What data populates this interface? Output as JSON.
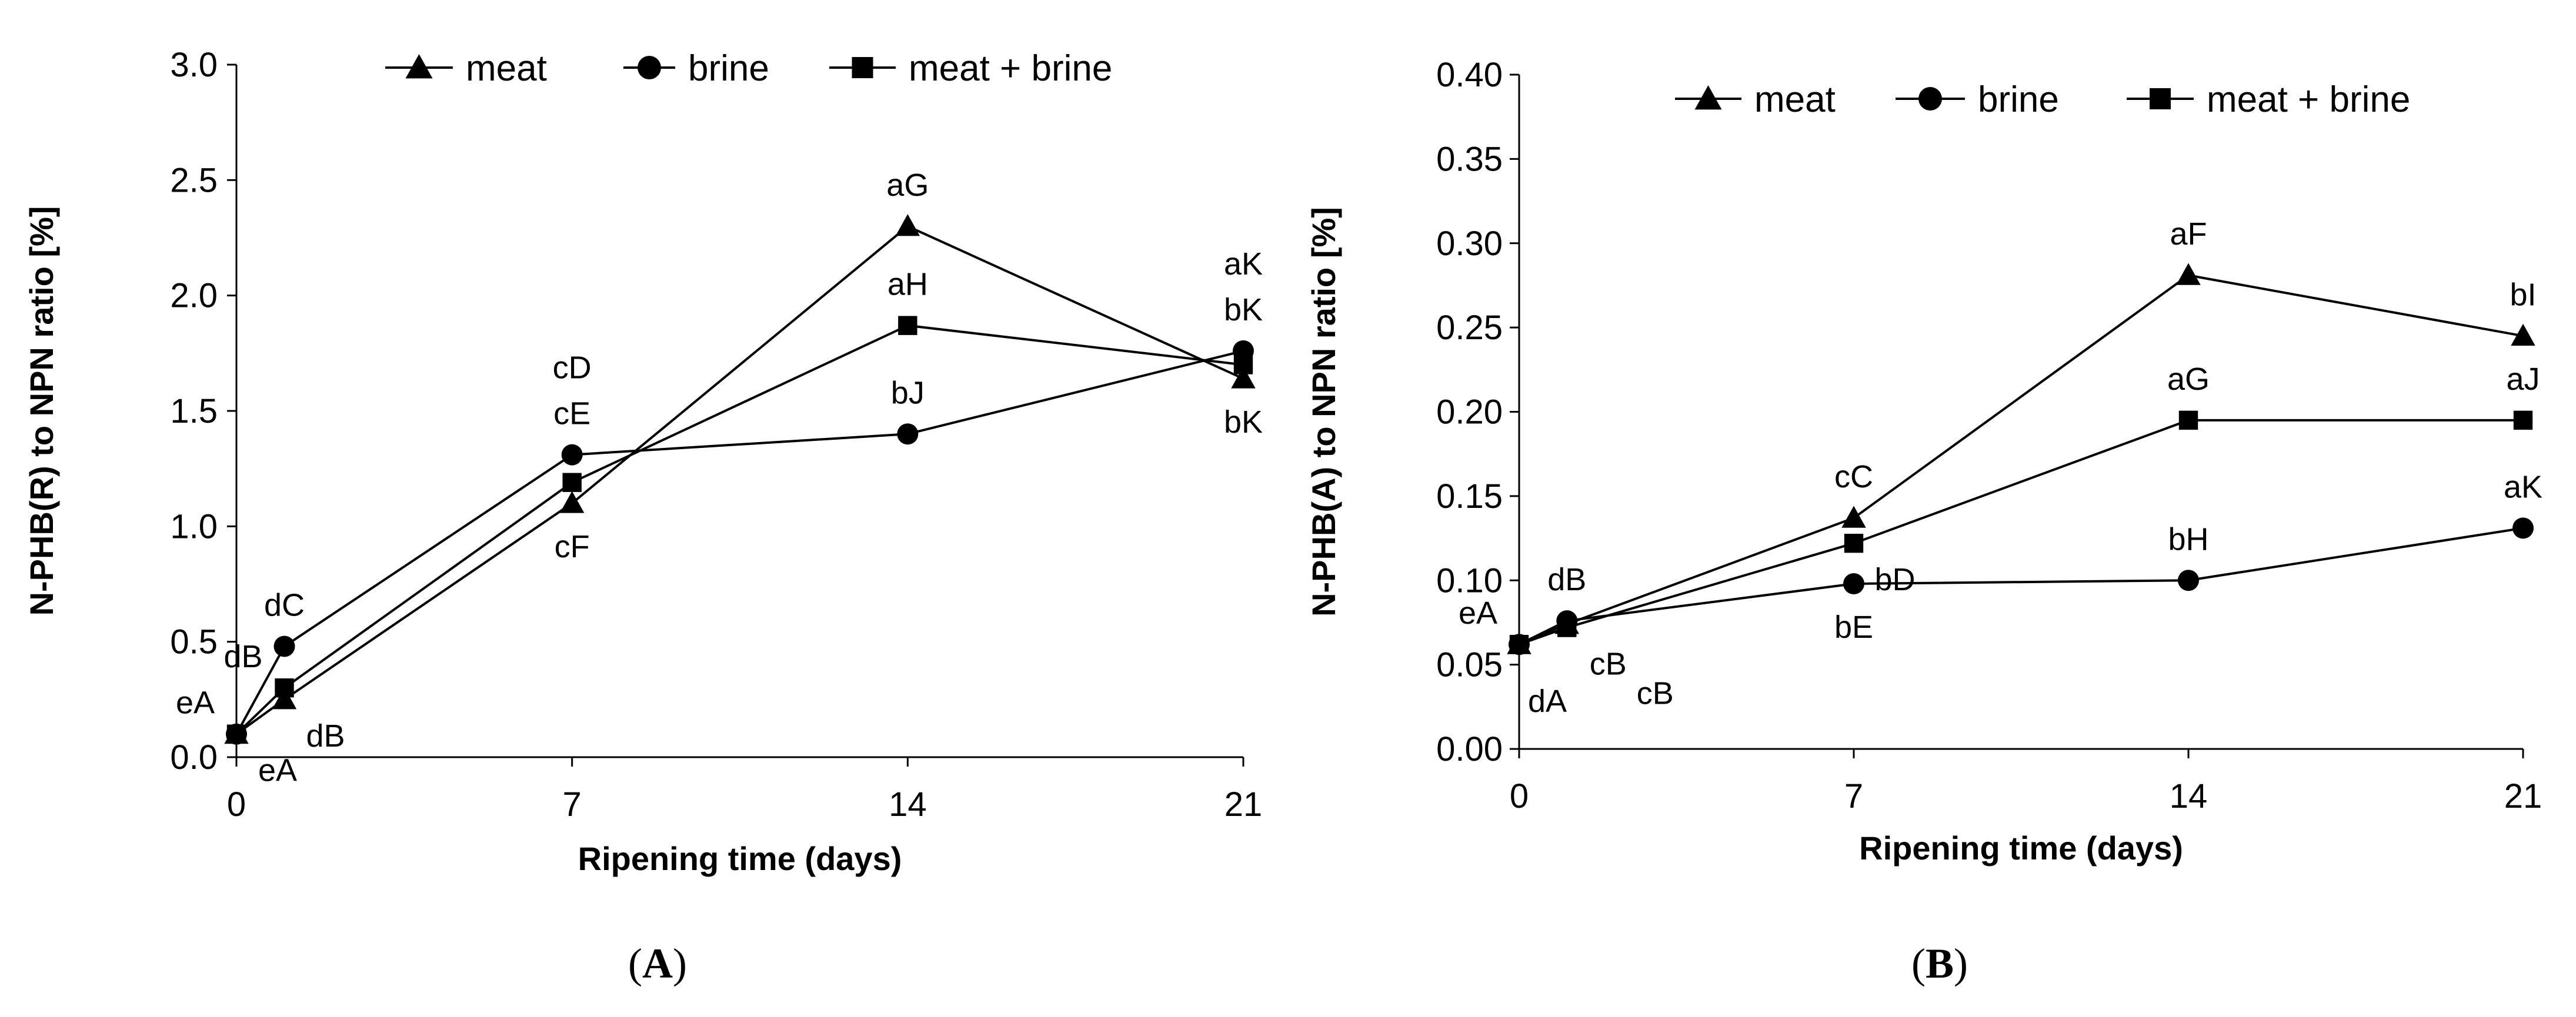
{
  "chart_data": [
    {
      "type": "line",
      "panel_label": "A",
      "title": "",
      "xlabel": "Ripening time (days)",
      "ylabel": "N-PHB(R) to NPN ratio [%]",
      "xlim": [
        0,
        21
      ],
      "ylim": [
        0,
        3.0
      ],
      "xticks": [
        0,
        7,
        14,
        21
      ],
      "xtick_labels": [
        "0",
        "7",
        "14",
        "21"
      ],
      "yticks": [
        0,
        0.5,
        1.0,
        1.5,
        2.0,
        2.5,
        3.0
      ],
      "ytick_labels": [
        "0.0",
        "0.5",
        "1.0",
        "1.5",
        "2.0",
        "2.5",
        "3.0"
      ],
      "legend": {
        "placement": "top",
        "entries": [
          "meat",
          "brine",
          "meat + brine"
        ]
      },
      "series": [
        {
          "name": "meat",
          "marker": "triangle",
          "x": [
            0,
            1,
            7,
            14,
            21
          ],
          "values": [
            0.1,
            0.25,
            1.1,
            2.3,
            1.64
          ]
        },
        {
          "name": "brine",
          "marker": "circle",
          "x": [
            0,
            1,
            7,
            14,
            21
          ],
          "values": [
            0.1,
            0.48,
            1.31,
            1.4,
            1.76
          ]
        },
        {
          "name": "meat + brine",
          "marker": "square",
          "x": [
            0,
            1,
            7,
            14,
            21
          ],
          "values": [
            0.1,
            0.3,
            1.19,
            1.87,
            1.7
          ]
        }
      ],
      "annotations": [
        {
          "text": "eA",
          "x": 0,
          "y": 0.1,
          "pos": "upper-left"
        },
        {
          "text": "eA",
          "x": 0,
          "y": 0.1,
          "pos": "lower-right"
        },
        {
          "text": "dC",
          "x": 1,
          "y": 0.48,
          "pos": "above"
        },
        {
          "text": "dB",
          "x": 1,
          "y": 0.3,
          "pos": "upper-left"
        },
        {
          "text": "dB",
          "x": 1,
          "y": 0.25,
          "pos": "lower-right"
        },
        {
          "text": "cD",
          "x": 7,
          "y": 1.31,
          "pos": "above2"
        },
        {
          "text": "cE",
          "x": 7,
          "y": 1.31,
          "pos": "above"
        },
        {
          "text": "cF",
          "x": 7,
          "y": 1.1,
          "pos": "below"
        },
        {
          "text": "aG",
          "x": 14,
          "y": 2.3,
          "pos": "above"
        },
        {
          "text": "aH",
          "x": 14,
          "y": 1.87,
          "pos": "above"
        },
        {
          "text": "bJ",
          "x": 14,
          "y": 1.4,
          "pos": "above"
        },
        {
          "text": "aK",
          "x": 21,
          "y": 1.76,
          "pos": "above2"
        },
        {
          "text": "bK",
          "x": 21,
          "y": 1.76,
          "pos": "above"
        },
        {
          "text": "bK",
          "x": 21,
          "y": 1.64,
          "pos": "below"
        }
      ]
    },
    {
      "type": "line",
      "panel_label": "B",
      "title": "",
      "xlabel": "Ripening time (days)",
      "ylabel": "N-PHB(A) to NPN ratio [%]",
      "xlim": [
        0,
        21
      ],
      "ylim": [
        0,
        0.4
      ],
      "xticks": [
        0,
        7,
        14,
        21
      ],
      "xtick_labels": [
        "0",
        "7",
        "14",
        "21"
      ],
      "yticks": [
        0,
        0.05,
        0.1,
        0.15,
        0.2,
        0.25,
        0.3,
        0.35,
        0.4
      ],
      "ytick_labels": [
        "0.00",
        "0.05",
        "0.10",
        "0.15",
        "0.20",
        "0.25",
        "0.30",
        "0.35",
        "0.40"
      ],
      "legend": {
        "placement": "top",
        "entries": [
          "meat",
          "brine",
          "meat + brine"
        ]
      },
      "series": [
        {
          "name": "meat",
          "marker": "triangle",
          "x": [
            0,
            1,
            7,
            14,
            21
          ],
          "values": [
            0.062,
            0.074,
            0.137,
            0.281,
            0.245
          ]
        },
        {
          "name": "brine",
          "marker": "circle",
          "x": [
            0,
            1,
            7,
            14,
            21
          ],
          "values": [
            0.062,
            0.076,
            0.098,
            0.1,
            0.131
          ]
        },
        {
          "name": "meat + brine",
          "marker": "square",
          "x": [
            0,
            1,
            7,
            14,
            21
          ],
          "values": [
            0.062,
            0.072,
            0.122,
            0.195,
            0.195
          ]
        }
      ],
      "annotations": [
        {
          "text": "eA",
          "x": 0,
          "y": 0.062,
          "pos": "upper-left"
        },
        {
          "text": "dA",
          "x": 0,
          "y": 0.062,
          "pos": "below-right"
        },
        {
          "text": "dB",
          "x": 1,
          "y": 0.076,
          "pos": "above"
        },
        {
          "text": "cB",
          "x": 1,
          "y": 0.072,
          "pos": "lower-right"
        },
        {
          "text": "cB",
          "x": 1,
          "y": 0.072,
          "pos": "lower-right2"
        },
        {
          "text": "cC",
          "x": 7,
          "y": 0.137,
          "pos": "above"
        },
        {
          "text": "bD",
          "x": 7,
          "y": 0.122,
          "pos": "lower-right"
        },
        {
          "text": "bE",
          "x": 7,
          "y": 0.098,
          "pos": "below"
        },
        {
          "text": "aF",
          "x": 14,
          "y": 0.281,
          "pos": "above"
        },
        {
          "text": "aG",
          "x": 14,
          "y": 0.195,
          "pos": "above"
        },
        {
          "text": "bH",
          "x": 14,
          "y": 0.1,
          "pos": "above"
        },
        {
          "text": "bI",
          "x": 21,
          "y": 0.245,
          "pos": "above"
        },
        {
          "text": "aJ",
          "x": 21,
          "y": 0.195,
          "pos": "above"
        },
        {
          "text": "aK",
          "x": 21,
          "y": 0.131,
          "pos": "above"
        }
      ]
    }
  ]
}
